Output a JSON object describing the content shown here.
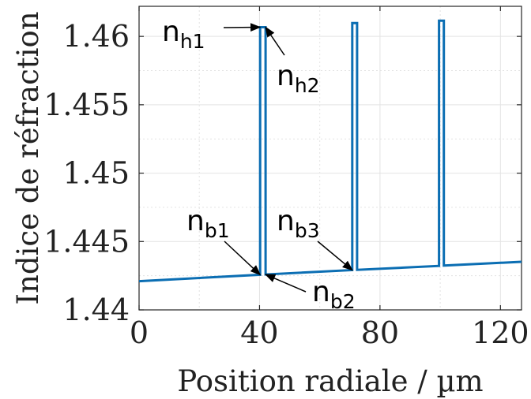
{
  "chart_data": {
    "type": "line",
    "title": "",
    "xlabel": "Position radiale / µm",
    "ylabel": "Indice  de réfraction",
    "xlim": [
      0,
      127
    ],
    "ylim": [
      1.44,
      1.4622
    ],
    "xticks": [
      0,
      40,
      80,
      120
    ],
    "xtick_labels": [
      "0",
      "40",
      "80",
      "120"
    ],
    "yticks": [
      1.44,
      1.445,
      1.45,
      1.455,
      1.46
    ],
    "ytick_labels": [
      "1.44",
      "1.445",
      "1.45",
      "1.455",
      "1.46"
    ],
    "grid": true,
    "line_color": "#0b6eb3",
    "series": [
      {
        "x": [
          0,
          40.2,
          40.2,
          42.0,
          42.0,
          70.8,
          70.8,
          72.4,
          72.4,
          99.6,
          99.6,
          101.2,
          101.2,
          127
        ],
        "y": [
          1.4421,
          1.44257,
          1.46067,
          1.46067,
          1.44259,
          1.44291,
          1.46097,
          1.46097,
          1.44293,
          1.44322,
          1.46115,
          1.46115,
          1.44324,
          1.44352
        ]
      }
    ],
    "annotations": [
      {
        "id": "nh1",
        "base": "n",
        "sub": "h1",
        "point": [
          40.2,
          1.46067
        ]
      },
      {
        "id": "nh2",
        "base": "n",
        "sub": "h2",
        "point": [
          42.0,
          1.46067
        ]
      },
      {
        "id": "nb1",
        "base": "n",
        "sub": "b1",
        "point": [
          40.2,
          1.44257
        ]
      },
      {
        "id": "nb2",
        "base": "n",
        "sub": "b2",
        "point": [
          42.0,
          1.44259
        ]
      },
      {
        "id": "nb3",
        "base": "n",
        "sub": "b3",
        "point": [
          70.8,
          1.44291
        ]
      }
    ]
  }
}
